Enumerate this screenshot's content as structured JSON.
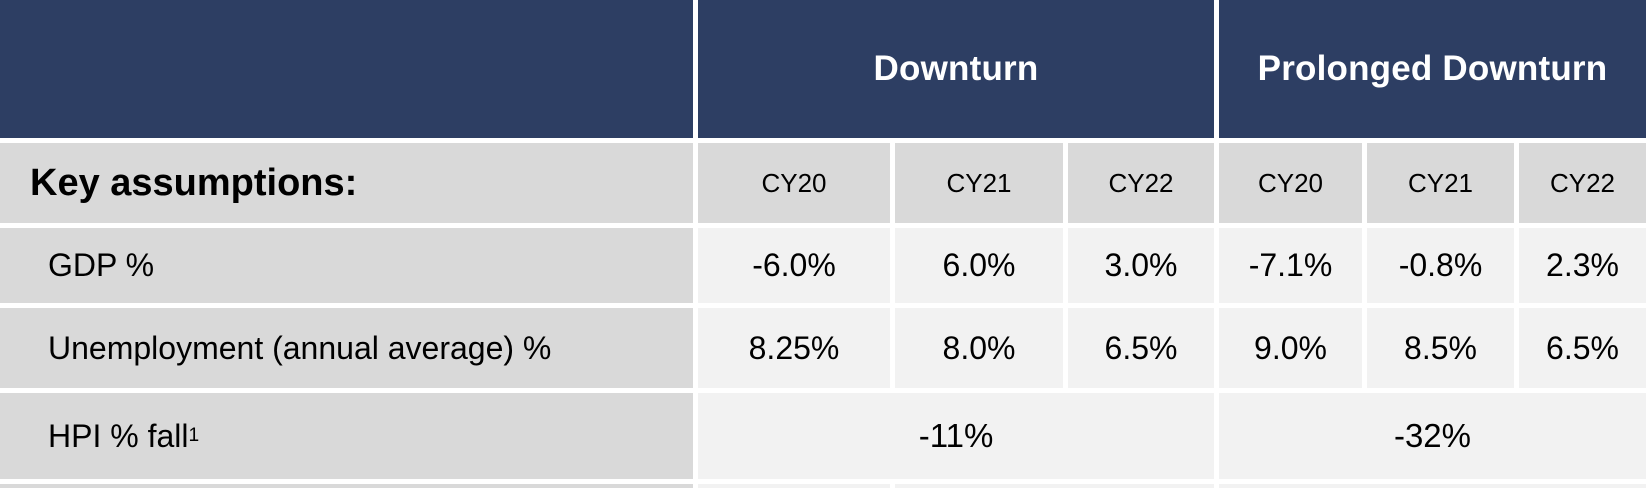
{
  "table": {
    "corner_label": "Key assumptions:",
    "groups": [
      {
        "label": "Downturn"
      },
      {
        "label": "Prolonged Downturn"
      }
    ],
    "year_headers": [
      "CY20",
      "CY21",
      "CY22",
      "CY20",
      "CY21",
      "CY22"
    ],
    "rows": [
      {
        "label": "GDP %",
        "values": [
          "-6.0%",
          "6.0%",
          "3.0%",
          "-7.1%",
          "-0.8%",
          "2.3%"
        ]
      },
      {
        "label": "Unemployment (annual average) %",
        "values": [
          "8.25%",
          "8.0%",
          "6.5%",
          "9.0%",
          "8.5%",
          "6.5%"
        ]
      },
      {
        "label": "HPI % fall",
        "superscript": "1",
        "merged_values": [
          "-11%",
          "-32%"
        ]
      }
    ],
    "colors": {
      "header_navy": "#2d3e63",
      "label_gray": "#d9d9d9",
      "value_gray": "#f2f2f2",
      "header_text": "#ffffff"
    }
  },
  "chart_data": {
    "type": "table",
    "title": "Key assumptions",
    "column_groups": [
      "Downturn",
      "Prolonged Downturn"
    ],
    "columns": [
      "CY20",
      "CY21",
      "CY22",
      "CY20",
      "CY21",
      "CY22"
    ],
    "row_labels": [
      "GDP %",
      "Unemployment (annual average) %",
      "HPI % fall"
    ],
    "cells": [
      [
        "-6.0%",
        "6.0%",
        "3.0%",
        "-7.1%",
        "-0.8%",
        "2.3%"
      ],
      [
        "8.25%",
        "8.0%",
        "6.5%",
        "9.0%",
        "8.5%",
        "6.5%"
      ],
      [
        "-11% (spans Downturn)",
        "-32% (spans Prolonged Downturn)"
      ]
    ]
  }
}
